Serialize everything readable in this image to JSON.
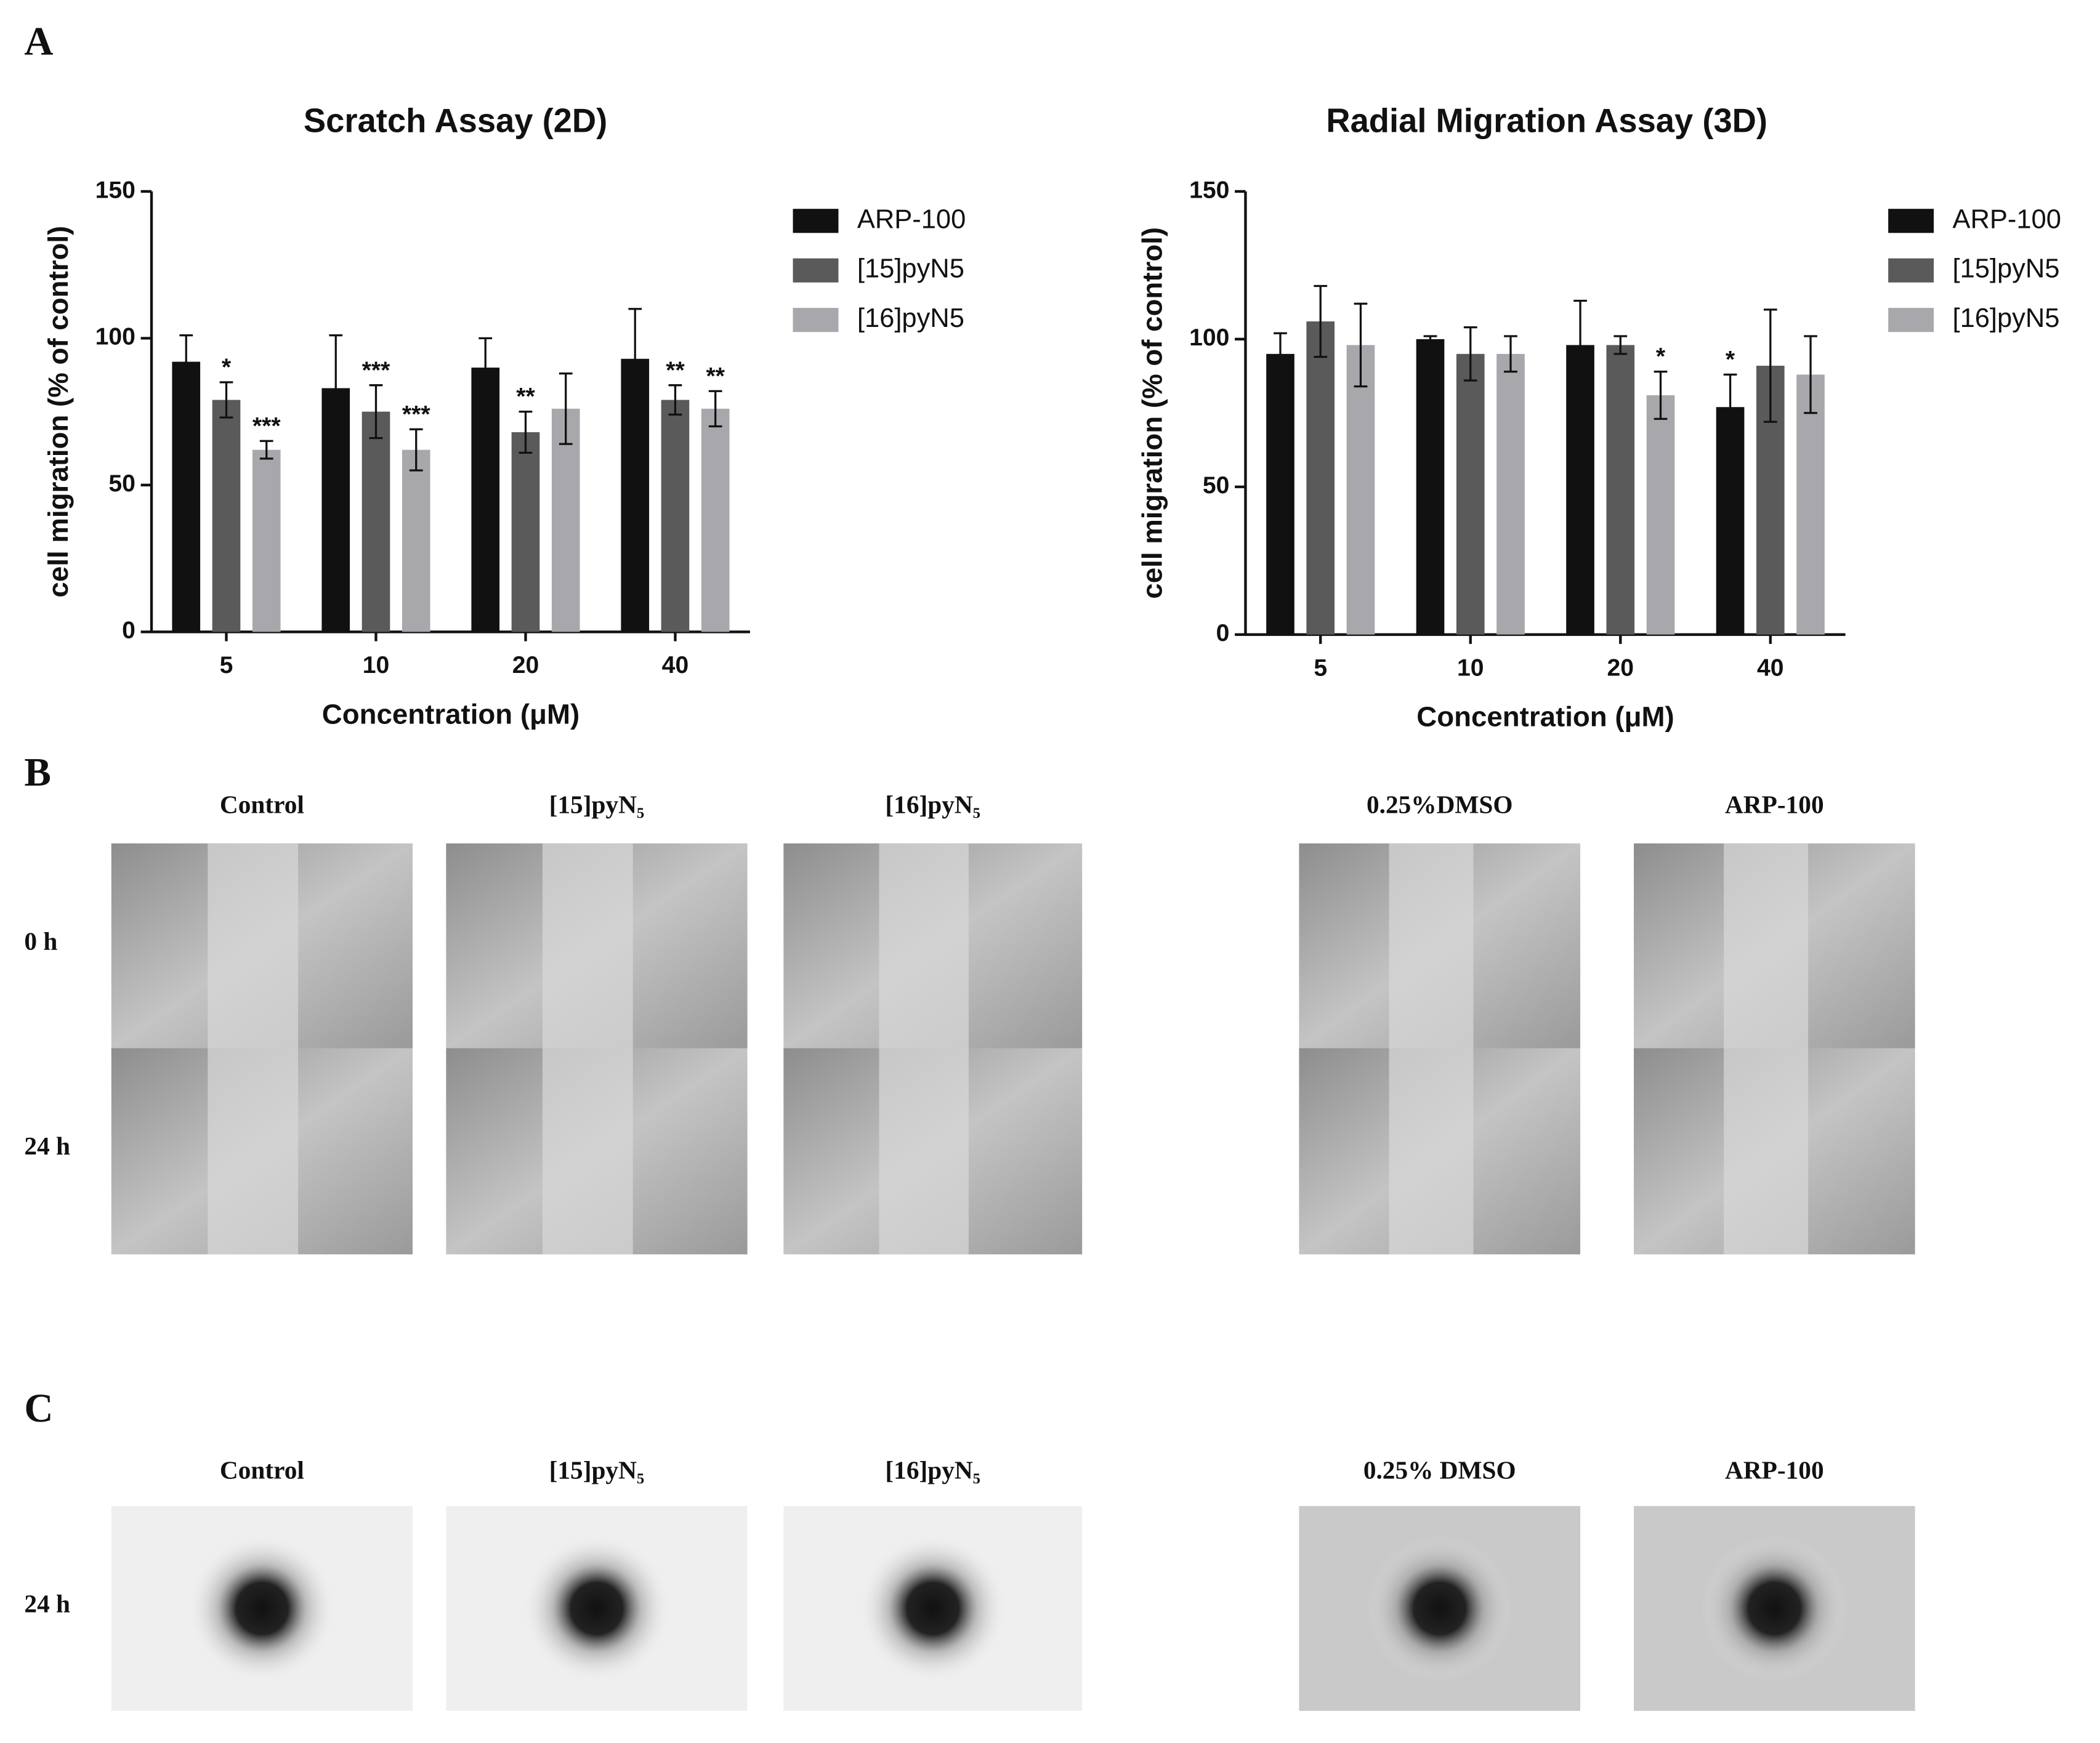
{
  "chart_data": [
    {
      "type": "bar",
      "title": "Scratch  Assay (2D)",
      "y_label": "cell migration (% of control)",
      "x_label": "Concentration (μM)",
      "categories": [
        "5",
        "10",
        "20",
        "40"
      ],
      "ylim": [
        0,
        150
      ],
      "yticks": [
        0,
        50,
        100,
        150
      ],
      "grid": false,
      "legend": "right",
      "series": [
        {
          "name": "ARP-100",
          "color": "#111111",
          "values": [
            92,
            83,
            90,
            93
          ],
          "errors": [
            9,
            18,
            10,
            17
          ],
          "annotations": [
            null,
            null,
            null,
            null
          ]
        },
        {
          "name": "[15]pyN5",
          "color": "#5a5a5a",
          "values": [
            79,
            75,
            68,
            79
          ],
          "errors": [
            6,
            9,
            7,
            5
          ],
          "annotations": [
            "*",
            "***",
            "**",
            "**"
          ]
        },
        {
          "name": "[16]pyN5",
          "color": "#a8a8ac",
          "values": [
            62,
            62,
            76,
            76
          ],
          "errors": [
            3,
            7,
            12,
            6
          ],
          "annotations": [
            "***",
            "***",
            null,
            "**"
          ]
        }
      ]
    },
    {
      "type": "bar",
      "title": "Radial  Migration Assay (3D)",
      "y_label": "cell migration (% of control)",
      "x_label": "Concentration (μM)",
      "categories": [
        "5",
        "10",
        "20",
        "40"
      ],
      "ylim": [
        0,
        150
      ],
      "yticks": [
        0,
        50,
        100,
        150
      ],
      "grid": false,
      "legend": "right",
      "series": [
        {
          "name": "ARP-100",
          "color": "#111111",
          "values": [
            95,
            100,
            98,
            77
          ],
          "errors": [
            7,
            1,
            15,
            11
          ],
          "annotations": [
            null,
            null,
            null,
            "*"
          ]
        },
        {
          "name": "[15]pyN5",
          "color": "#5a5a5a",
          "values": [
            106,
            95,
            98,
            91
          ],
          "errors": [
            12,
            9,
            3,
            19
          ],
          "annotations": [
            null,
            null,
            null,
            null
          ]
        },
        {
          "name": "[16]pyN5",
          "color": "#a8a8ac",
          "values": [
            98,
            95,
            81,
            88
          ],
          "errors": [
            14,
            6,
            8,
            13
          ],
          "annotations": [
            null,
            null,
            "*",
            null
          ]
        }
      ]
    }
  ],
  "panel_labels": [
    "A",
    "B",
    "C"
  ],
  "panel_b": {
    "columns": [
      "Control",
      "[15]pyN₅",
      "[16]pyN₅",
      "0.25%DMSO",
      "ARP-100"
    ],
    "rows": [
      "0 h",
      "24 h"
    ]
  },
  "panel_c": {
    "columns": [
      "Control",
      "[15]pyN₅",
      "[16]pyN₅",
      "0.25% DMSO",
      "ARP-100"
    ],
    "rows": [
      "24 h"
    ]
  }
}
